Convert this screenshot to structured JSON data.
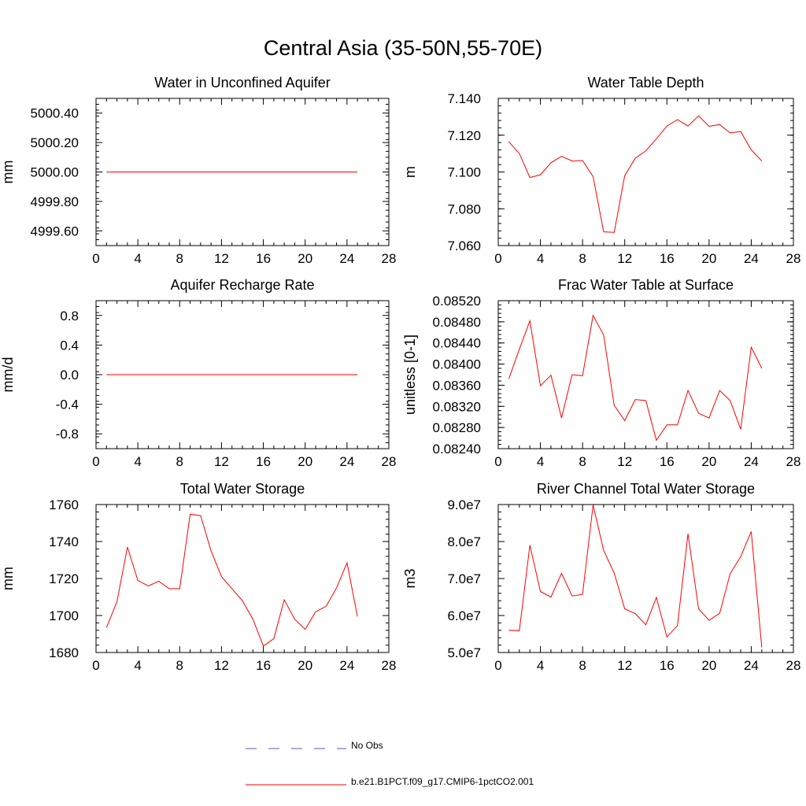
{
  "title": "Central Asia (35-50N,55-70E)",
  "legend": {
    "items": [
      {
        "label": "No Obs",
        "color": "#5a5acd",
        "dash": "dashed"
      },
      {
        "label": "b.e21.B1PCT.f09_g17.CMIP6-1pctCO2.001",
        "color": "#ff0000",
        "dash": "solid"
      }
    ]
  },
  "chart_data": [
    {
      "type": "line",
      "title": "Water in Unconfined Aquifer",
      "ylabel": "mm",
      "xlim": [
        0,
        28
      ],
      "xticks": [
        0,
        4,
        8,
        12,
        16,
        20,
        24,
        28
      ],
      "ylim": [
        4999.5,
        5000.5
      ],
      "yticks": [
        4999.6,
        4999.8,
        5000.0,
        5000.2,
        5000.4
      ],
      "ytick_labels": [
        "4999.60",
        "4999.80",
        "5000.00",
        "5000.20",
        "5000.40"
      ],
      "series": [
        {
          "color": "#ff0000",
          "x": [
            1,
            2,
            3,
            4,
            5,
            6,
            7,
            8,
            9,
            10,
            11,
            12,
            13,
            14,
            15,
            16,
            17,
            18,
            19,
            20,
            21,
            22,
            23,
            24,
            25
          ],
          "values": [
            5000,
            5000,
            5000,
            5000,
            5000,
            5000,
            5000,
            5000,
            5000,
            5000,
            5000,
            5000,
            5000,
            5000,
            5000,
            5000,
            5000,
            5000,
            5000,
            5000,
            5000,
            5000,
            5000,
            5000,
            5000
          ]
        }
      ]
    },
    {
      "type": "line",
      "title": "Water Table Depth",
      "ylabel": "m",
      "xlim": [
        0,
        28
      ],
      "xticks": [
        0,
        4,
        8,
        12,
        16,
        20,
        24,
        28
      ],
      "ylim": [
        7.06,
        7.14
      ],
      "yticks": [
        7.06,
        7.08,
        7.1,
        7.12,
        7.14
      ],
      "ytick_labels": [
        "7.060",
        "7.080",
        "7.100",
        "7.120",
        "7.140"
      ],
      "series": [
        {
          "color": "#ff0000",
          "x": [
            1,
            2,
            3,
            4,
            5,
            6,
            7,
            8,
            9,
            10,
            11,
            12,
            13,
            14,
            15,
            16,
            17,
            18,
            19,
            20,
            21,
            22,
            23,
            24,
            25
          ],
          "values": [
            7.1165,
            7.11,
            7.097,
            7.0985,
            7.105,
            7.1085,
            7.106,
            7.1062,
            7.0975,
            7.0675,
            7.0672,
            7.098,
            7.1075,
            7.1115,
            7.118,
            7.125,
            7.1285,
            7.125,
            7.1305,
            7.1248,
            7.1258,
            7.1212,
            7.122,
            7.112,
            7.106
          ]
        }
      ]
    },
    {
      "type": "line",
      "title": "Aquifer Recharge Rate",
      "ylabel": "mm/d",
      "xlim": [
        0,
        28
      ],
      "xticks": [
        0,
        4,
        8,
        12,
        16,
        20,
        24,
        28
      ],
      "ylim": [
        -1.0,
        1.0
      ],
      "yticks": [
        -0.8,
        -0.4,
        0.0,
        0.4,
        0.8
      ],
      "ytick_labels": [
        "-0.8",
        "-0.4",
        "0.0",
        "0.4",
        "0.8"
      ],
      "series": [
        {
          "color": "#ff0000",
          "x": [
            1,
            2,
            3,
            4,
            5,
            6,
            7,
            8,
            9,
            10,
            11,
            12,
            13,
            14,
            15,
            16,
            17,
            18,
            19,
            20,
            21,
            22,
            23,
            24,
            25
          ],
          "values": [
            0,
            0,
            0,
            0,
            0,
            0,
            0,
            0,
            0,
            0,
            0,
            0,
            0,
            0,
            0,
            0,
            0,
            0,
            0,
            0,
            0,
            0,
            0,
            0,
            0
          ]
        }
      ]
    },
    {
      "type": "line",
      "title": "Frac Water Table at Surface",
      "ylabel": "unitless [0-1]",
      "xlim": [
        0,
        28
      ],
      "xticks": [
        0,
        4,
        8,
        12,
        16,
        20,
        24,
        28
      ],
      "ylim": [
        0.0824,
        0.0852
      ],
      "yticks": [
        0.0824,
        0.0828,
        0.0832,
        0.0836,
        0.084,
        0.0844,
        0.0848,
        0.0852
      ],
      "ytick_labels": [
        "0.08240",
        "0.08280",
        "0.08320",
        "0.08360",
        "0.08400",
        "0.08440",
        "0.08480",
        "0.08520"
      ],
      "series": [
        {
          "color": "#ff0000",
          "x": [
            1,
            2,
            3,
            4,
            5,
            6,
            7,
            8,
            9,
            10,
            11,
            12,
            13,
            14,
            15,
            16,
            17,
            18,
            19,
            20,
            21,
            22,
            23,
            24,
            25
          ],
          "values": [
            0.08372,
            0.08428,
            0.08482,
            0.08359,
            0.08379,
            0.08298,
            0.0838,
            0.08378,
            0.08492,
            0.08455,
            0.08322,
            0.08293,
            0.08333,
            0.08331,
            0.08256,
            0.08285,
            0.08285,
            0.0835,
            0.08307,
            0.08298,
            0.0835,
            0.08331,
            0.08277,
            0.08432,
            0.08392
          ]
        }
      ]
    },
    {
      "type": "line",
      "title": "Total Water Storage",
      "ylabel": "mm",
      "xlim": [
        0,
        28
      ],
      "xticks": [
        0,
        4,
        8,
        12,
        16,
        20,
        24,
        28
      ],
      "ylim": [
        1680,
        1760
      ],
      "yticks": [
        1680,
        1700,
        1720,
        1740,
        1760
      ],
      "ytick_labels": [
        "1680",
        "1700",
        "1720",
        "1740",
        "1760"
      ],
      "series": [
        {
          "color": "#ff0000",
          "x": [
            1,
            2,
            3,
            4,
            5,
            6,
            7,
            8,
            9,
            10,
            11,
            12,
            13,
            14,
            15,
            16,
            17,
            18,
            19,
            20,
            21,
            22,
            23,
            24,
            25
          ],
          "values": [
            1693.5,
            1707.5,
            1737.0,
            1719.0,
            1716.0,
            1718.5,
            1714.5,
            1714.5,
            1754.8,
            1754.0,
            1735.0,
            1721.0,
            1714.5,
            1708.0,
            1698.0,
            1683.5,
            1687.5,
            1708.5,
            1698.0,
            1692.5,
            1702.0,
            1705.0,
            1715.0,
            1728.5,
            1699.5
          ]
        }
      ]
    },
    {
      "type": "line",
      "title": "River Channel Total Water Storage",
      "ylabel": "m3",
      "xlim": [
        0,
        28
      ],
      "xticks": [
        0,
        4,
        8,
        12,
        16,
        20,
        24,
        28
      ],
      "ylim": [
        50000000,
        90000000
      ],
      "yticks": [
        50000000,
        60000000,
        70000000,
        80000000,
        90000000
      ],
      "ytick_labels": [
        "5.0e7",
        "6.0e7",
        "7.0e7",
        "8.0e7",
        "9.0e7"
      ],
      "series": [
        {
          "color": "#ff0000",
          "x": [
            1,
            2,
            3,
            4,
            5,
            6,
            7,
            8,
            9,
            10,
            11,
            12,
            13,
            14,
            15,
            16,
            17,
            18,
            19,
            20,
            21,
            22,
            23,
            24,
            25
          ],
          "values": [
            56000000,
            55900000,
            79000000,
            66500000,
            65000000,
            71400000,
            65300000,
            65700000,
            89900000,
            77600000,
            71500000,
            61800000,
            60500000,
            57500000,
            64900000,
            54200000,
            57300000,
            82100000,
            61800000,
            58700000,
            60600000,
            71300000,
            75900000,
            82700000,
            51400000
          ]
        }
      ]
    }
  ]
}
